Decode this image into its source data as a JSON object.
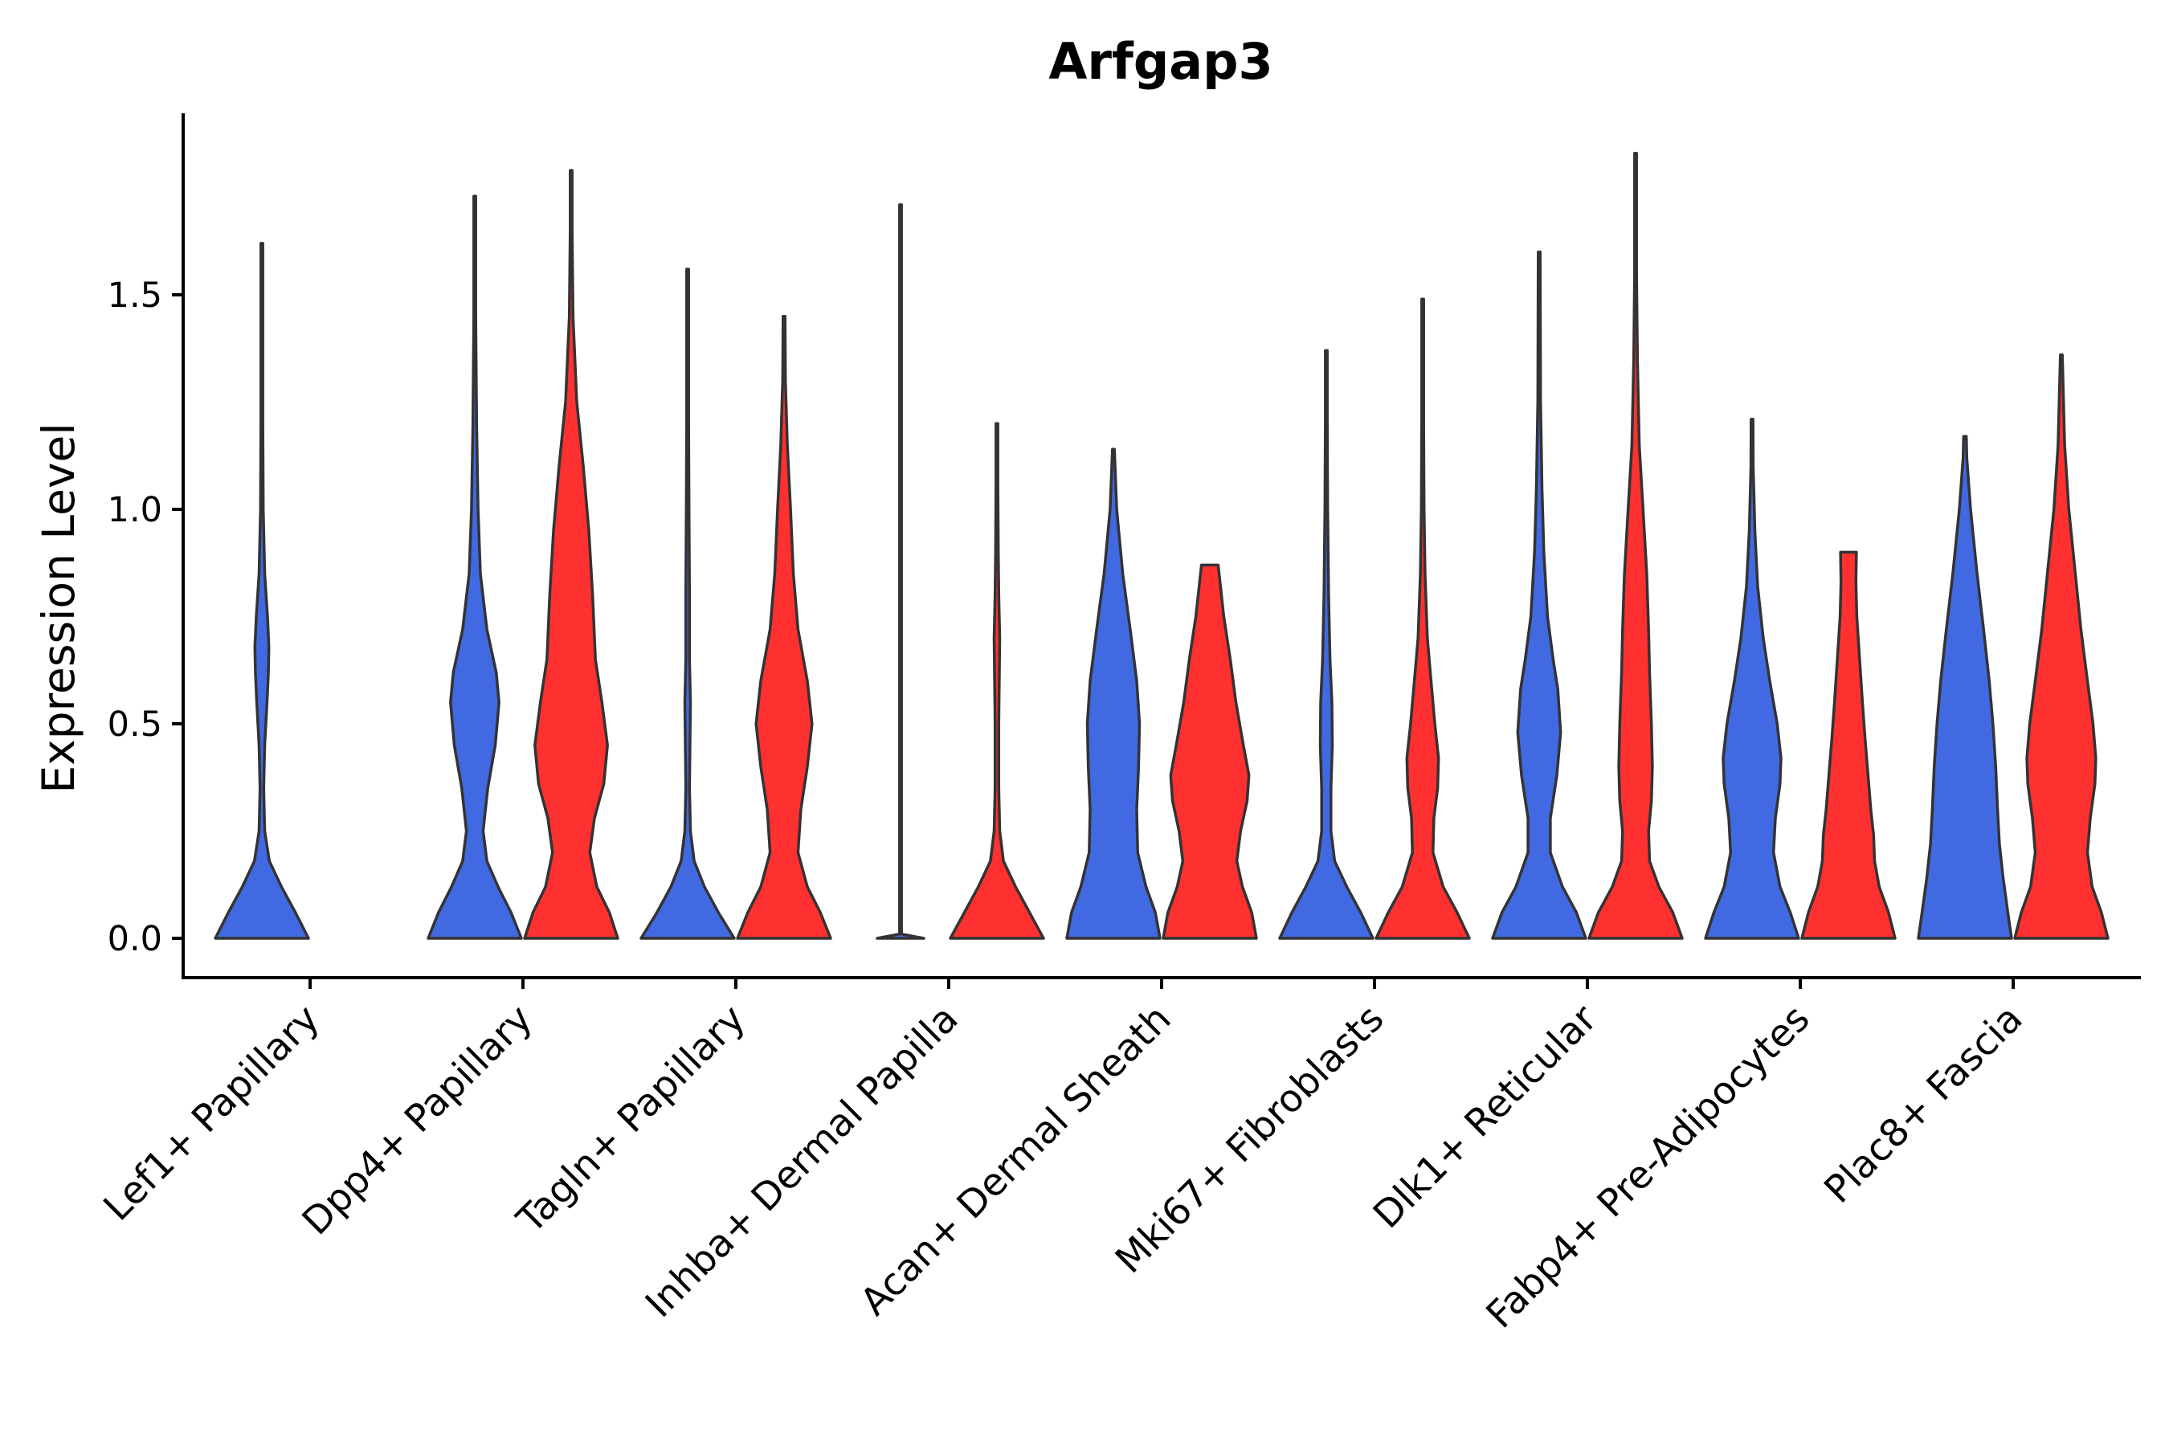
{
  "chart_data": {
    "type": "violin",
    "title": "Arfgap3",
    "xlabel": "",
    "ylabel": "Expression Level",
    "ylim": [
      -0.09,
      1.92
    ],
    "yticks": [
      0.0,
      0.5,
      1.0,
      1.5
    ],
    "ytick_labels": [
      "0.0",
      "0.5",
      "1.0",
      "1.5"
    ],
    "categories": [
      "Lef1+ Papillary",
      "Dpp4+ Papillary",
      "Tagln+ Papillary",
      "Inhba+ Dermal Papilla",
      "Acan+ Dermal Sheath",
      "Mki67+ Fibroblasts",
      "Dlk1+ Reticular",
      "Fabp4+ Pre-Adipocytes",
      "Plac8+ Fascia"
    ],
    "split_colors": [
      "#4169E1",
      "#FF3030"
    ],
    "violins": [
      {
        "category": 0,
        "side": "left",
        "color": "#4169E1",
        "max": 1.62,
        "profile": [
          [
            0.0,
            1.0
          ],
          [
            0.06,
            0.72
          ],
          [
            0.12,
            0.42
          ],
          [
            0.18,
            0.16
          ],
          [
            0.25,
            0.06
          ],
          [
            0.35,
            0.04
          ],
          [
            0.45,
            0.06
          ],
          [
            0.55,
            0.11
          ],
          [
            0.62,
            0.14
          ],
          [
            0.68,
            0.15
          ],
          [
            0.75,
            0.12
          ],
          [
            0.85,
            0.06
          ],
          [
            1.0,
            0.03
          ],
          [
            1.2,
            0.015
          ],
          [
            1.4,
            0.01
          ],
          [
            1.62,
            0.005
          ]
        ]
      },
      {
        "category": 1,
        "side": "left",
        "color": "#4169E1",
        "max": 1.73,
        "profile": [
          [
            0.0,
            1.0
          ],
          [
            0.06,
            0.78
          ],
          [
            0.12,
            0.5
          ],
          [
            0.18,
            0.26
          ],
          [
            0.25,
            0.18
          ],
          [
            0.35,
            0.28
          ],
          [
            0.45,
            0.44
          ],
          [
            0.55,
            0.52
          ],
          [
            0.62,
            0.46
          ],
          [
            0.72,
            0.26
          ],
          [
            0.85,
            0.12
          ],
          [
            1.0,
            0.07
          ],
          [
            1.2,
            0.04
          ],
          [
            1.45,
            0.02
          ],
          [
            1.73,
            0.005
          ]
        ]
      },
      {
        "category": 1,
        "side": "right",
        "color": "#FF3030",
        "max": 1.79,
        "profile": [
          [
            0.0,
            1.0
          ],
          [
            0.06,
            0.82
          ],
          [
            0.12,
            0.55
          ],
          [
            0.2,
            0.4
          ],
          [
            0.28,
            0.5
          ],
          [
            0.36,
            0.7
          ],
          [
            0.45,
            0.78
          ],
          [
            0.55,
            0.66
          ],
          [
            0.65,
            0.52
          ],
          [
            0.8,
            0.46
          ],
          [
            0.95,
            0.38
          ],
          [
            1.1,
            0.26
          ],
          [
            1.25,
            0.12
          ],
          [
            1.45,
            0.04
          ],
          [
            1.65,
            0.015
          ],
          [
            1.79,
            0.005
          ]
        ]
      },
      {
        "category": 2,
        "side": "left",
        "color": "#4169E1",
        "max": 1.56,
        "profile": [
          [
            0.0,
            1.0
          ],
          [
            0.06,
            0.66
          ],
          [
            0.12,
            0.36
          ],
          [
            0.18,
            0.14
          ],
          [
            0.25,
            0.06
          ],
          [
            0.35,
            0.04
          ],
          [
            0.45,
            0.05
          ],
          [
            0.55,
            0.06
          ],
          [
            0.65,
            0.04
          ],
          [
            0.8,
            0.04
          ],
          [
            1.0,
            0.03
          ],
          [
            1.2,
            0.015
          ],
          [
            1.56,
            0.005
          ]
        ]
      },
      {
        "category": 2,
        "side": "right",
        "color": "#FF3030",
        "max": 1.45,
        "profile": [
          [
            0.0,
            1.0
          ],
          [
            0.06,
            0.78
          ],
          [
            0.12,
            0.5
          ],
          [
            0.2,
            0.3
          ],
          [
            0.3,
            0.36
          ],
          [
            0.4,
            0.5
          ],
          [
            0.5,
            0.6
          ],
          [
            0.6,
            0.5
          ],
          [
            0.72,
            0.3
          ],
          [
            0.85,
            0.2
          ],
          [
            1.0,
            0.14
          ],
          [
            1.15,
            0.07
          ],
          [
            1.3,
            0.03
          ],
          [
            1.45,
            0.005
          ]
        ]
      },
      {
        "category": 3,
        "side": "left",
        "color": "#4169E1",
        "max": 1.71,
        "profile": [
          [
            0.0,
            0.5
          ],
          [
            0.01,
            0.005
          ],
          [
            1.71,
            0.005
          ]
        ]
      },
      {
        "category": 3,
        "side": "right",
        "color": "#FF3030",
        "max": 1.2,
        "profile": [
          [
            0.0,
            1.0
          ],
          [
            0.06,
            0.7
          ],
          [
            0.12,
            0.4
          ],
          [
            0.18,
            0.14
          ],
          [
            0.25,
            0.06
          ],
          [
            0.35,
            0.04
          ],
          [
            0.5,
            0.04
          ],
          [
            0.6,
            0.05
          ],
          [
            0.7,
            0.06
          ],
          [
            0.8,
            0.04
          ],
          [
            0.9,
            0.03
          ],
          [
            1.05,
            0.015
          ],
          [
            1.2,
            0.005
          ]
        ]
      },
      {
        "category": 4,
        "side": "left",
        "color": "#4169E1",
        "max": 1.14,
        "profile": [
          [
            0.0,
            1.0
          ],
          [
            0.06,
            0.9
          ],
          [
            0.12,
            0.7
          ],
          [
            0.2,
            0.52
          ],
          [
            0.3,
            0.5
          ],
          [
            0.4,
            0.54
          ],
          [
            0.5,
            0.56
          ],
          [
            0.6,
            0.5
          ],
          [
            0.72,
            0.36
          ],
          [
            0.85,
            0.2
          ],
          [
            1.0,
            0.07
          ],
          [
            1.14,
            0.005
          ]
        ]
      },
      {
        "category": 4,
        "side": "right",
        "color": "#FF3030",
        "max": 0.87,
        "profile": [
          [
            0.0,
            1.0
          ],
          [
            0.06,
            0.9
          ],
          [
            0.12,
            0.7
          ],
          [
            0.18,
            0.58
          ],
          [
            0.25,
            0.66
          ],
          [
            0.32,
            0.8
          ],
          [
            0.38,
            0.84
          ],
          [
            0.45,
            0.72
          ],
          [
            0.55,
            0.56
          ],
          [
            0.65,
            0.44
          ],
          [
            0.75,
            0.3
          ],
          [
            0.87,
            0.18
          ]
        ]
      },
      {
        "category": 5,
        "side": "left",
        "color": "#4169E1",
        "max": 1.37,
        "profile": [
          [
            0.0,
            1.0
          ],
          [
            0.06,
            0.74
          ],
          [
            0.12,
            0.44
          ],
          [
            0.18,
            0.18
          ],
          [
            0.25,
            0.1
          ],
          [
            0.35,
            0.1
          ],
          [
            0.45,
            0.13
          ],
          [
            0.55,
            0.12
          ],
          [
            0.65,
            0.08
          ],
          [
            0.8,
            0.05
          ],
          [
            1.0,
            0.03
          ],
          [
            1.2,
            0.015
          ],
          [
            1.37,
            0.005
          ]
        ]
      },
      {
        "category": 5,
        "side": "right",
        "color": "#FF3030",
        "max": 1.49,
        "profile": [
          [
            0.0,
            1.0
          ],
          [
            0.06,
            0.74
          ],
          [
            0.12,
            0.44
          ],
          [
            0.2,
            0.22
          ],
          [
            0.28,
            0.24
          ],
          [
            0.35,
            0.32
          ],
          [
            0.42,
            0.34
          ],
          [
            0.5,
            0.26
          ],
          [
            0.6,
            0.18
          ],
          [
            0.7,
            0.1
          ],
          [
            0.85,
            0.05
          ],
          [
            1.0,
            0.03
          ],
          [
            1.2,
            0.015
          ],
          [
            1.49,
            0.005
          ]
        ]
      },
      {
        "category": 6,
        "side": "left",
        "color": "#4169E1",
        "max": 1.6,
        "profile": [
          [
            0.0,
            1.0
          ],
          [
            0.06,
            0.8
          ],
          [
            0.12,
            0.5
          ],
          [
            0.2,
            0.24
          ],
          [
            0.28,
            0.24
          ],
          [
            0.38,
            0.38
          ],
          [
            0.48,
            0.46
          ],
          [
            0.58,
            0.4
          ],
          [
            0.65,
            0.3
          ],
          [
            0.75,
            0.18
          ],
          [
            0.9,
            0.1
          ],
          [
            1.05,
            0.06
          ],
          [
            1.25,
            0.03
          ],
          [
            1.6,
            0.005
          ]
        ]
      },
      {
        "category": 6,
        "side": "right",
        "color": "#FF3030",
        "max": 1.83,
        "profile": [
          [
            0.0,
            1.0
          ],
          [
            0.06,
            0.8
          ],
          [
            0.12,
            0.5
          ],
          [
            0.18,
            0.3
          ],
          [
            0.25,
            0.28
          ],
          [
            0.32,
            0.34
          ],
          [
            0.4,
            0.36
          ],
          [
            0.5,
            0.34
          ],
          [
            0.62,
            0.3
          ],
          [
            0.72,
            0.28
          ],
          [
            0.85,
            0.24
          ],
          [
            1.0,
            0.16
          ],
          [
            1.15,
            0.08
          ],
          [
            1.35,
            0.04
          ],
          [
            1.55,
            0.02
          ],
          [
            1.83,
            0.005
          ]
        ]
      },
      {
        "category": 7,
        "side": "left",
        "color": "#4169E1",
        "max": 1.21,
        "profile": [
          [
            0.0,
            1.0
          ],
          [
            0.06,
            0.82
          ],
          [
            0.12,
            0.6
          ],
          [
            0.2,
            0.46
          ],
          [
            0.28,
            0.5
          ],
          [
            0.36,
            0.6
          ],
          [
            0.42,
            0.62
          ],
          [
            0.5,
            0.54
          ],
          [
            0.6,
            0.38
          ],
          [
            0.7,
            0.24
          ],
          [
            0.82,
            0.12
          ],
          [
            0.95,
            0.06
          ],
          [
            1.1,
            0.025
          ],
          [
            1.21,
            0.005
          ]
        ]
      },
      {
        "category": 7,
        "side": "right",
        "color": "#FF3030",
        "max": 0.9,
        "profile": [
          [
            0.0,
            1.0
          ],
          [
            0.06,
            0.86
          ],
          [
            0.12,
            0.66
          ],
          [
            0.18,
            0.56
          ],
          [
            0.24,
            0.54
          ],
          [
            0.3,
            0.48
          ],
          [
            0.38,
            0.42
          ],
          [
            0.46,
            0.36
          ],
          [
            0.55,
            0.3
          ],
          [
            0.65,
            0.24
          ],
          [
            0.75,
            0.18
          ],
          [
            0.83,
            0.16
          ],
          [
            0.9,
            0.17
          ]
        ]
      },
      {
        "category": 8,
        "side": "left",
        "color": "#4169E1",
        "max": 1.17,
        "profile": [
          [
            0.0,
            1.0
          ],
          [
            0.06,
            0.92
          ],
          [
            0.14,
            0.82
          ],
          [
            0.22,
            0.74
          ],
          [
            0.3,
            0.7
          ],
          [
            0.4,
            0.66
          ],
          [
            0.5,
            0.6
          ],
          [
            0.6,
            0.52
          ],
          [
            0.72,
            0.4
          ],
          [
            0.85,
            0.26
          ],
          [
            1.0,
            0.12
          ],
          [
            1.12,
            0.04
          ],
          [
            1.17,
            0.03
          ]
        ]
      },
      {
        "category": 8,
        "side": "right",
        "color": "#FF3030",
        "max": 1.36,
        "profile": [
          [
            0.0,
            1.0
          ],
          [
            0.06,
            0.86
          ],
          [
            0.12,
            0.66
          ],
          [
            0.2,
            0.56
          ],
          [
            0.28,
            0.62
          ],
          [
            0.36,
            0.72
          ],
          [
            0.42,
            0.74
          ],
          [
            0.5,
            0.68
          ],
          [
            0.6,
            0.56
          ],
          [
            0.72,
            0.42
          ],
          [
            0.85,
            0.3
          ],
          [
            1.0,
            0.16
          ],
          [
            1.15,
            0.07
          ],
          [
            1.36,
            0.005
          ]
        ]
      }
    ]
  }
}
